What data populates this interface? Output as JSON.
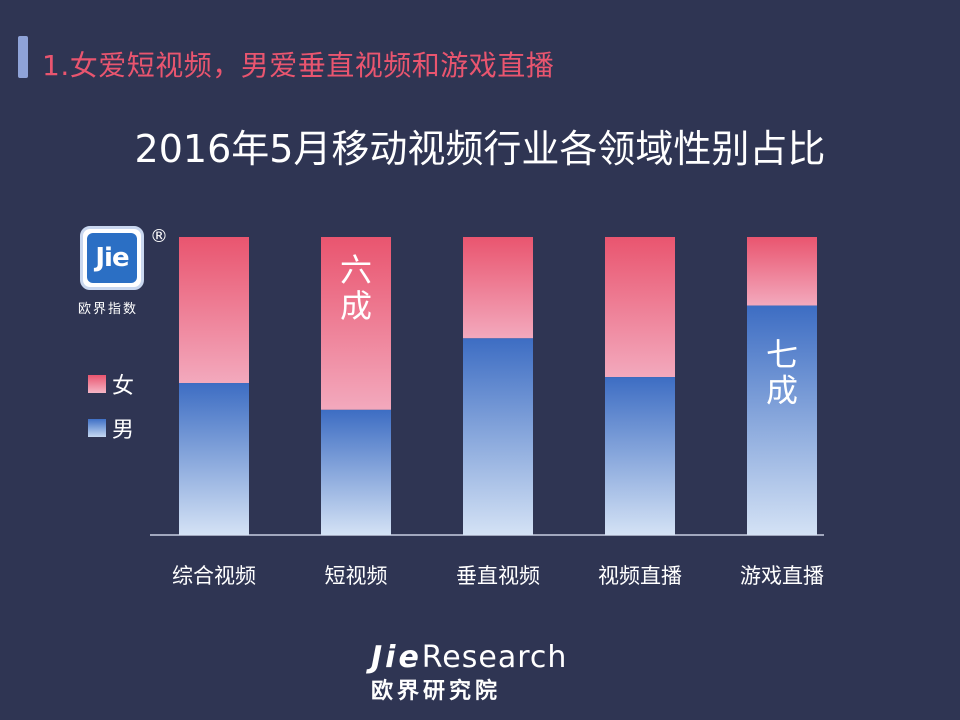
{
  "section": {
    "title": "1.女爱短视频，男爱垂直视频和游戏直播"
  },
  "logo": {
    "mark": "Jie",
    "registered": "®",
    "caption": "欧界指数"
  },
  "colors": {
    "background": "#2f3553",
    "female": "#e9556f",
    "male": "#3f70c6",
    "section_title": "#e9556f"
  },
  "legend": [
    {
      "label": "女",
      "color": "#e9556f"
    },
    {
      "label": "男",
      "color": "#3f70c6"
    }
  ],
  "chart_data": {
    "type": "bar",
    "stacked": true,
    "percent": true,
    "title": "2016年5月移动视频行业各领域性别占比",
    "categories": [
      "综合视频",
      "短视频",
      "垂直视频",
      "视频直播",
      "游戏直播"
    ],
    "series": [
      {
        "name": "男",
        "values": [
          51,
          42,
          66,
          53,
          77
        ]
      },
      {
        "name": "女",
        "values": [
          49,
          58,
          34,
          47,
          23
        ]
      }
    ],
    "ylim": [
      0,
      100
    ],
    "annotations": [
      {
        "category": "短视频",
        "series": "女",
        "text": "六成"
      },
      {
        "category": "游戏直播",
        "series": "男",
        "text": "七成"
      }
    ],
    "legend_position": "left",
    "grid": false
  },
  "footer": {
    "brand_bold": "Jie",
    "brand_rest": "Research",
    "brand_cn": "欧界研究院"
  }
}
